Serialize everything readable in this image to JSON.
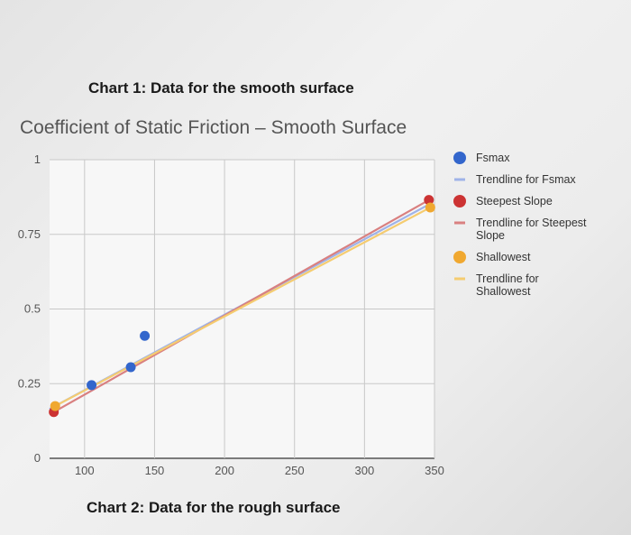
{
  "captions": {
    "top": "Chart 1: Data for the smooth surface",
    "bottom": "Chart 2: Data for the rough surface"
  },
  "chart_data": {
    "type": "scatter",
    "title": "Coefficient of Static Friction – Smooth Surface",
    "xlabel": "",
    "ylabel": "",
    "xlim": [
      75,
      350
    ],
    "ylim": [
      0,
      1
    ],
    "x_ticks": [
      100,
      150,
      200,
      250,
      300,
      350
    ],
    "y_ticks": [
      0,
      0.25,
      0.5,
      0.75,
      1
    ],
    "y_tick_labels": [
      "0",
      "0.25",
      "0.5",
      "0.75",
      "1"
    ],
    "grid": true,
    "legend_position": "right",
    "series": [
      {
        "name": "Fsmax",
        "kind": "points",
        "color": "#3366cc",
        "points": [
          [
            105,
            0.245
          ],
          [
            133,
            0.305
          ],
          [
            143,
            0.41
          ]
        ]
      },
      {
        "name": "Trendline for Fsmax",
        "kind": "line",
        "color": "#9fb3e8",
        "points": [
          [
            75,
            0.165
          ],
          [
            348,
            0.855
          ]
        ]
      },
      {
        "name": "Steepest Slope",
        "kind": "points",
        "color": "#cc3333",
        "points": [
          [
            78,
            0.155
          ],
          [
            346,
            0.865
          ]
        ]
      },
      {
        "name": "Trendline for Steepest Slope",
        "kind": "line",
        "color": "#d98080",
        "points": [
          [
            78,
            0.155
          ],
          [
            346,
            0.865
          ]
        ]
      },
      {
        "name": "Shallowest",
        "kind": "points",
        "color": "#f0a830",
        "points": [
          [
            79,
            0.175
          ],
          [
            347,
            0.84
          ]
        ]
      },
      {
        "name": "Trendline for Shallowest",
        "kind": "line",
        "color": "#f5cc70",
        "points": [
          [
            79,
            0.175
          ],
          [
            347,
            0.84
          ]
        ]
      }
    ]
  }
}
